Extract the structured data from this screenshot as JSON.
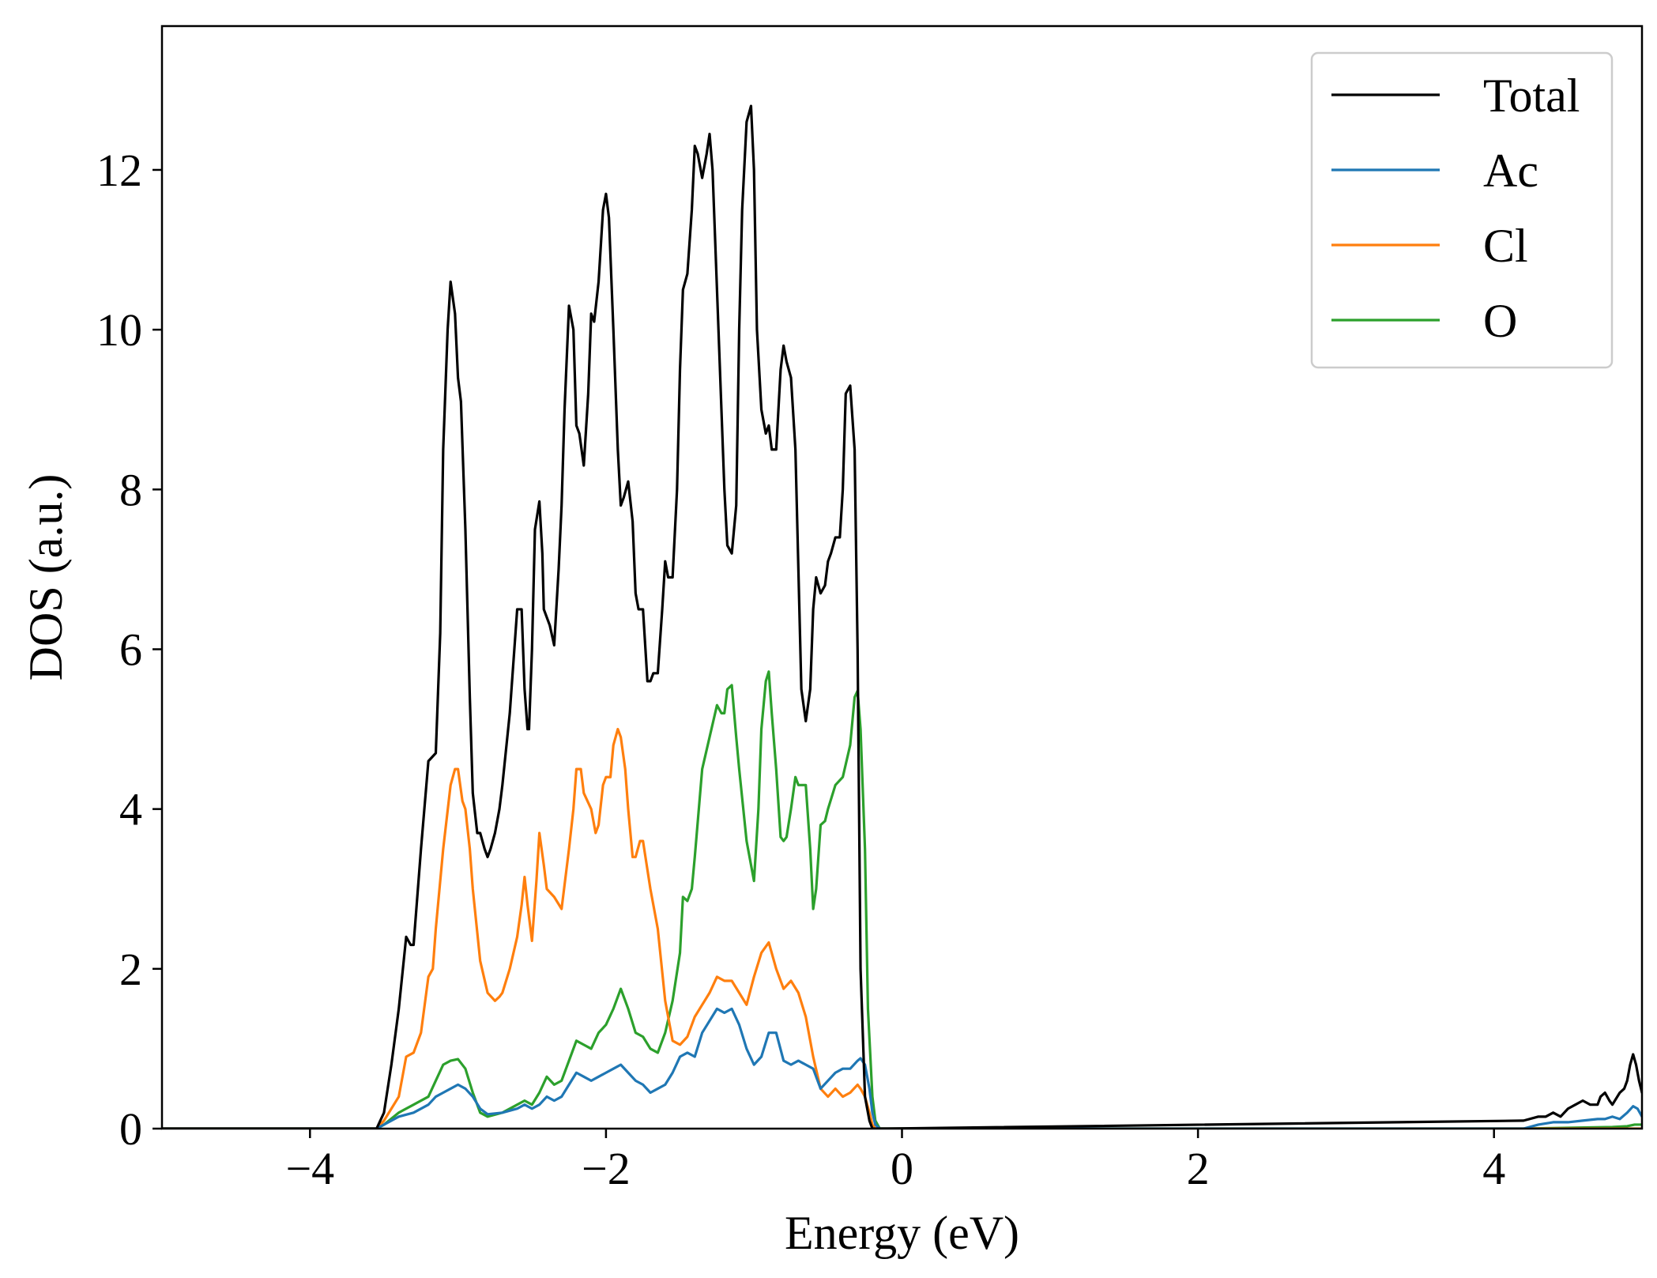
{
  "chart_data": {
    "type": "line",
    "xlabel": "Energy (eV)",
    "ylabel": "DOS (a.u.)",
    "xlim": [
      -5,
      5
    ],
    "ylim": [
      0,
      13.8
    ],
    "xticks": [
      -4,
      -2,
      0,
      2,
      4
    ],
    "xtick_labels": [
      "−4",
      "−2",
      "0",
      "2",
      "4"
    ],
    "yticks": [
      0,
      2,
      4,
      6,
      8,
      10,
      12
    ],
    "ytick_labels": [
      "0",
      "2",
      "4",
      "6",
      "8",
      "10",
      "12"
    ],
    "grid": false,
    "legend_position": "top-right",
    "series": [
      {
        "name": "Total",
        "color": "#000000",
        "x": [
          -5.0,
          -3.55,
          -3.5,
          -3.45,
          -3.4,
          -3.35,
          -3.32,
          -3.3,
          -3.25,
          -3.2,
          -3.15,
          -3.12,
          -3.1,
          -3.07,
          -3.05,
          -3.02,
          -3.0,
          -2.98,
          -2.95,
          -2.92,
          -2.9,
          -2.87,
          -2.85,
          -2.82,
          -2.8,
          -2.78,
          -2.75,
          -2.72,
          -2.7,
          -2.65,
          -2.6,
          -2.57,
          -2.55,
          -2.53,
          -2.52,
          -2.5,
          -2.48,
          -2.45,
          -2.43,
          -2.42,
          -2.4,
          -2.38,
          -2.35,
          -2.32,
          -2.3,
          -2.28,
          -2.25,
          -2.22,
          -2.2,
          -2.18,
          -2.15,
          -2.12,
          -2.1,
          -2.08,
          -2.05,
          -2.02,
          -2.0,
          -1.98,
          -1.95,
          -1.92,
          -1.9,
          -1.88,
          -1.85,
          -1.82,
          -1.8,
          -1.78,
          -1.75,
          -1.72,
          -1.7,
          -1.68,
          -1.65,
          -1.62,
          -1.6,
          -1.58,
          -1.55,
          -1.52,
          -1.5,
          -1.48,
          -1.45,
          -1.42,
          -1.4,
          -1.38,
          -1.35,
          -1.32,
          -1.3,
          -1.28,
          -1.25,
          -1.22,
          -1.2,
          -1.18,
          -1.15,
          -1.12,
          -1.1,
          -1.08,
          -1.05,
          -1.02,
          -1.0,
          -0.98,
          -0.95,
          -0.92,
          -0.9,
          -0.88,
          -0.85,
          -0.82,
          -0.8,
          -0.78,
          -0.75,
          -0.72,
          -0.7,
          -0.68,
          -0.65,
          -0.62,
          -0.6,
          -0.58,
          -0.55,
          -0.52,
          -0.5,
          -0.48,
          -0.45,
          -0.42,
          -0.4,
          -0.38,
          -0.35,
          -0.32,
          -0.3,
          -0.28,
          -0.25,
          -0.22,
          -0.2,
          -0.18,
          -0.15,
          -0.1,
          4.2,
          4.3,
          4.35,
          4.4,
          4.45,
          4.5,
          4.55,
          4.6,
          4.65,
          4.7,
          4.72,
          4.75,
          4.78,
          4.8,
          4.85,
          4.88,
          4.9,
          4.92,
          4.94,
          4.96,
          4.98,
          5.0
        ],
        "y": [
          0.0,
          0.0,
          0.2,
          0.8,
          1.5,
          2.4,
          2.3,
          2.3,
          3.5,
          4.6,
          4.7,
          6.2,
          8.5,
          10.0,
          10.6,
          10.2,
          9.4,
          9.1,
          7.5,
          5.4,
          4.2,
          3.7,
          3.7,
          3.5,
          3.4,
          3.5,
          3.7,
          4.0,
          4.3,
          5.2,
          6.5,
          6.5,
          5.5,
          5.0,
          5.0,
          6.0,
          7.5,
          7.85,
          7.2,
          6.5,
          6.4,
          6.3,
          6.05,
          7.0,
          7.8,
          9.0,
          10.3,
          10.0,
          8.8,
          8.7,
          8.3,
          9.2,
          10.2,
          10.1,
          10.6,
          11.5,
          11.7,
          11.4,
          10.0,
          8.5,
          7.8,
          7.9,
          8.1,
          7.6,
          6.7,
          6.5,
          6.5,
          5.6,
          5.6,
          5.7,
          5.7,
          6.5,
          7.1,
          6.9,
          6.9,
          8.0,
          9.5,
          10.5,
          10.7,
          11.5,
          12.3,
          12.2,
          11.9,
          12.2,
          12.45,
          12.0,
          10.5,
          9.0,
          8.0,
          7.3,
          7.2,
          7.8,
          10.0,
          11.5,
          12.6,
          12.8,
          12.0,
          10.0,
          9.0,
          8.7,
          8.8,
          8.5,
          8.5,
          9.5,
          9.8,
          9.6,
          9.4,
          8.5,
          7.0,
          5.5,
          5.1,
          5.5,
          6.5,
          6.9,
          6.7,
          6.8,
          7.1,
          7.2,
          7.4,
          7.4,
          8.0,
          9.2,
          9.3,
          8.5,
          6.0,
          2.0,
          0.4,
          0.1,
          0.0,
          0.0,
          0.0,
          0.0,
          0.1,
          0.15,
          0.15,
          0.2,
          0.15,
          0.25,
          0.3,
          0.35,
          0.3,
          0.3,
          0.4,
          0.45,
          0.35,
          0.3,
          0.45,
          0.5,
          0.6,
          0.8,
          0.93,
          0.8,
          0.6,
          0.45
        ]
      },
      {
        "name": "Ac",
        "color": "#1f77b4",
        "x": [
          -5.0,
          -3.55,
          -3.5,
          -3.4,
          -3.3,
          -3.2,
          -3.15,
          -3.1,
          -3.05,
          -3.0,
          -2.95,
          -2.9,
          -2.85,
          -2.8,
          -2.7,
          -2.6,
          -2.55,
          -2.5,
          -2.45,
          -2.4,
          -2.35,
          -2.3,
          -2.25,
          -2.2,
          -2.15,
          -2.1,
          -2.05,
          -2.0,
          -1.95,
          -1.9,
          -1.85,
          -1.8,
          -1.75,
          -1.7,
          -1.65,
          -1.6,
          -1.55,
          -1.5,
          -1.45,
          -1.4,
          -1.35,
          -1.3,
          -1.25,
          -1.2,
          -1.15,
          -1.1,
          -1.05,
          -1.0,
          -0.95,
          -0.9,
          -0.85,
          -0.8,
          -0.75,
          -0.7,
          -0.65,
          -0.6,
          -0.55,
          -0.5,
          -0.45,
          -0.4,
          -0.35,
          -0.3,
          -0.28,
          -0.25,
          -0.22,
          -0.2,
          -0.18,
          -0.15,
          -0.1,
          4.2,
          4.3,
          4.4,
          4.5,
          4.6,
          4.7,
          4.75,
          4.8,
          4.85,
          4.9,
          4.94,
          4.97,
          5.0
        ],
        "y": [
          0.0,
          0.0,
          0.05,
          0.15,
          0.2,
          0.3,
          0.4,
          0.45,
          0.5,
          0.55,
          0.5,
          0.4,
          0.25,
          0.18,
          0.2,
          0.25,
          0.3,
          0.25,
          0.3,
          0.4,
          0.35,
          0.4,
          0.55,
          0.7,
          0.65,
          0.6,
          0.65,
          0.7,
          0.75,
          0.8,
          0.7,
          0.6,
          0.55,
          0.45,
          0.5,
          0.55,
          0.7,
          0.9,
          0.95,
          0.9,
          1.2,
          1.35,
          1.5,
          1.45,
          1.5,
          1.3,
          1.0,
          0.8,
          0.9,
          1.2,
          1.2,
          0.85,
          0.8,
          0.85,
          0.8,
          0.75,
          0.5,
          0.6,
          0.7,
          0.75,
          0.75,
          0.85,
          0.88,
          0.8,
          0.5,
          0.2,
          0.05,
          0.0,
          0.0,
          0.0,
          0.05,
          0.08,
          0.08,
          0.1,
          0.12,
          0.12,
          0.15,
          0.12,
          0.2,
          0.28,
          0.25,
          0.15
        ]
      },
      {
        "name": "Cl",
        "color": "#ff7f0e",
        "x": [
          -5.0,
          -3.55,
          -3.5,
          -3.4,
          -3.35,
          -3.3,
          -3.25,
          -3.2,
          -3.17,
          -3.15,
          -3.1,
          -3.05,
          -3.02,
          -3.0,
          -2.97,
          -2.95,
          -2.92,
          -2.9,
          -2.85,
          -2.8,
          -2.75,
          -2.72,
          -2.7,
          -2.65,
          -2.6,
          -2.57,
          -2.55,
          -2.53,
          -2.5,
          -2.47,
          -2.45,
          -2.42,
          -2.4,
          -2.35,
          -2.3,
          -2.27,
          -2.25,
          -2.22,
          -2.2,
          -2.17,
          -2.15,
          -2.1,
          -2.07,
          -2.05,
          -2.02,
          -2.0,
          -1.97,
          -1.95,
          -1.92,
          -1.9,
          -1.87,
          -1.85,
          -1.82,
          -1.8,
          -1.77,
          -1.75,
          -1.7,
          -1.65,
          -1.6,
          -1.55,
          -1.5,
          -1.45,
          -1.4,
          -1.35,
          -1.3,
          -1.25,
          -1.2,
          -1.15,
          -1.1,
          -1.05,
          -1.0,
          -0.95,
          -0.9,
          -0.85,
          -0.8,
          -0.75,
          -0.7,
          -0.65,
          -0.6,
          -0.55,
          -0.5,
          -0.45,
          -0.4,
          -0.35,
          -0.3,
          -0.28,
          -0.25,
          -0.22,
          -0.2,
          -0.18,
          -0.15,
          -0.1,
          4.2,
          5.0
        ],
        "y": [
          0.0,
          0.0,
          0.1,
          0.4,
          0.9,
          0.95,
          1.2,
          1.9,
          2.0,
          2.5,
          3.5,
          4.3,
          4.5,
          4.5,
          4.1,
          4.0,
          3.5,
          3.0,
          2.1,
          1.7,
          1.6,
          1.65,
          1.7,
          2.0,
          2.4,
          2.8,
          3.15,
          2.8,
          2.35,
          3.1,
          3.7,
          3.3,
          3.0,
          2.9,
          2.75,
          3.2,
          3.5,
          4.0,
          4.5,
          4.5,
          4.2,
          4.0,
          3.7,
          3.8,
          4.3,
          4.4,
          4.4,
          4.8,
          5.0,
          4.9,
          4.5,
          4.0,
          3.4,
          3.4,
          3.6,
          3.6,
          3.0,
          2.5,
          1.6,
          1.1,
          1.05,
          1.15,
          1.4,
          1.55,
          1.7,
          1.9,
          1.85,
          1.85,
          1.7,
          1.55,
          1.9,
          2.2,
          2.33,
          2.0,
          1.75,
          1.85,
          1.7,
          1.4,
          0.9,
          0.5,
          0.4,
          0.5,
          0.4,
          0.45,
          0.55,
          0.5,
          0.4,
          0.2,
          0.05,
          0.0,
          0.0,
          0.0,
          0.0,
          0.0
        ]
      },
      {
        "name": "O",
        "color": "#2ca02c",
        "x": [
          -5.0,
          -3.55,
          -3.5,
          -3.4,
          -3.3,
          -3.2,
          -3.15,
          -3.1,
          -3.05,
          -3.0,
          -2.95,
          -2.9,
          -2.85,
          -2.8,
          -2.7,
          -2.6,
          -2.55,
          -2.5,
          -2.45,
          -2.4,
          -2.35,
          -2.3,
          -2.25,
          -2.2,
          -2.15,
          -2.1,
          -2.05,
          -2.0,
          -1.95,
          -1.9,
          -1.85,
          -1.8,
          -1.75,
          -1.7,
          -1.65,
          -1.6,
          -1.55,
          -1.5,
          -1.48,
          -1.45,
          -1.42,
          -1.4,
          -1.35,
          -1.3,
          -1.25,
          -1.22,
          -1.2,
          -1.18,
          -1.15,
          -1.12,
          -1.1,
          -1.05,
          -1.0,
          -0.97,
          -0.95,
          -0.92,
          -0.9,
          -0.88,
          -0.85,
          -0.82,
          -0.8,
          -0.78,
          -0.75,
          -0.72,
          -0.7,
          -0.65,
          -0.62,
          -0.6,
          -0.58,
          -0.55,
          -0.52,
          -0.5,
          -0.45,
          -0.4,
          -0.35,
          -0.32,
          -0.3,
          -0.28,
          -0.25,
          -0.23,
          -0.2,
          -0.18,
          -0.15,
          -0.1,
          4.2,
          4.5,
          4.8,
          4.9,
          4.95,
          5.0
        ],
        "y": [
          0.0,
          0.0,
          0.05,
          0.2,
          0.3,
          0.4,
          0.6,
          0.8,
          0.85,
          0.87,
          0.75,
          0.45,
          0.2,
          0.15,
          0.2,
          0.3,
          0.35,
          0.3,
          0.45,
          0.65,
          0.55,
          0.6,
          0.85,
          1.1,
          1.05,
          1.0,
          1.2,
          1.3,
          1.5,
          1.75,
          1.5,
          1.2,
          1.15,
          1.0,
          0.95,
          1.2,
          1.6,
          2.2,
          2.9,
          2.85,
          3.0,
          3.4,
          4.5,
          4.9,
          5.3,
          5.2,
          5.2,
          5.5,
          5.55,
          4.9,
          4.5,
          3.6,
          3.1,
          4.0,
          5.0,
          5.6,
          5.72,
          5.2,
          4.5,
          3.65,
          3.6,
          3.65,
          4.0,
          4.4,
          4.3,
          4.3,
          3.5,
          2.75,
          3.0,
          3.8,
          3.85,
          4.0,
          4.3,
          4.4,
          4.8,
          5.4,
          5.48,
          5.0,
          3.5,
          1.5,
          0.4,
          0.1,
          0.0,
          0.0,
          0.0,
          0.01,
          0.02,
          0.03,
          0.05,
          0.05
        ]
      }
    ]
  }
}
